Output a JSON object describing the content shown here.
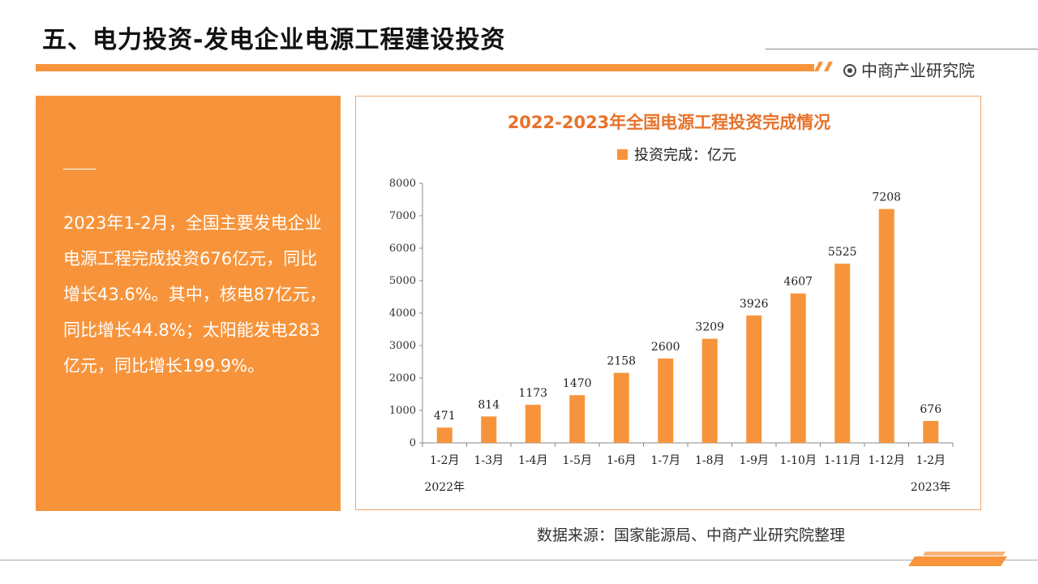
{
  "header": {
    "title": "五、电力投资-发电企业电源工程建设投资",
    "brand": "中商产业研究院"
  },
  "panel": {
    "text": "2023年1-2月，全国主要发电企业电源工程完成投资676亿元，同比增长43.6%。其中，核电87亿元，同比增长44.8%；太阳能发电283亿元，同比增长199.9%。"
  },
  "source": "数据来源：国家能源局、中商产业研究院整理",
  "colors": {
    "accent": "#f7943b",
    "title": "#e8722a"
  },
  "chart_data": {
    "type": "bar",
    "title": "2022-2023年全国电源工程投资完成情况",
    "legend": "投资完成：亿元",
    "legend_position": "top",
    "categories": [
      "1-2月",
      "1-3月",
      "1-4月",
      "1-5月",
      "1-6月",
      "1-7月",
      "1-8月",
      "1-9月",
      "1-10月",
      "1-11月",
      "1-12月",
      "1-2月"
    ],
    "values": [
      471,
      814,
      1173,
      1470,
      2158,
      2600,
      3209,
      3926,
      4607,
      5525,
      7208,
      676
    ],
    "year_labels": [
      {
        "text": "2022年",
        "index": 0
      },
      {
        "text": "2023年",
        "index": 11
      }
    ],
    "ylim": [
      0,
      8000
    ],
    "yticks": [
      0,
      1000,
      2000,
      3000,
      4000,
      5000,
      6000,
      7000,
      8000
    ],
    "grid": false
  }
}
